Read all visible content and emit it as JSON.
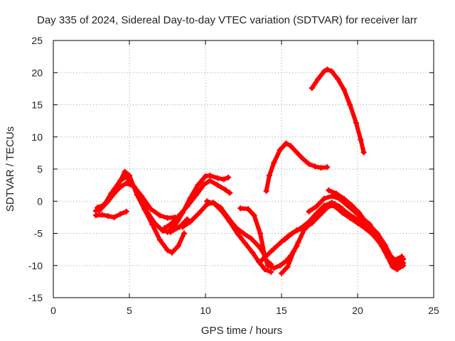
{
  "chart_data": {
    "type": "scatter",
    "title": "Day 335 of 2024, Sidereal Day-to-day VTEC variation (SDTVAR) for receiver larr",
    "xlabel": "GPS time / hours",
    "ylabel": "SDTVAR / TECUs",
    "xlim": [
      0,
      25
    ],
    "ylim": [
      -15,
      25
    ],
    "xticks": [
      "0",
      "5",
      "10",
      "15",
      "20",
      "25"
    ],
    "yticks": [
      "-15",
      "-10",
      "-5",
      "0",
      "5",
      "10",
      "15",
      "20",
      "25"
    ],
    "grid": true,
    "marker": "plus",
    "color": "#ff0000",
    "series": [
      {
        "points": [
          [
            2.9,
            -1.0
          ],
          [
            3.3,
            -0.6
          ],
          [
            3.7,
            0.6
          ],
          [
            4.2,
            2.2
          ],
          [
            4.7,
            4.6
          ],
          [
            5.0,
            4.0
          ],
          [
            5.5,
            1.0
          ],
          [
            6.0,
            -1.3
          ],
          [
            6.5,
            -3.6
          ],
          [
            7.0,
            -6.0
          ],
          [
            7.5,
            -7.6
          ],
          [
            7.8,
            -8.0
          ],
          [
            8.2,
            -7.0
          ],
          [
            8.6,
            -5.0
          ]
        ]
      },
      {
        "points": [
          [
            3.0,
            -1.5
          ],
          [
            3.4,
            -0.4
          ],
          [
            3.8,
            1.2
          ],
          [
            4.4,
            3.2
          ],
          [
            4.8,
            3.8
          ],
          [
            5.2,
            2.6
          ],
          [
            5.7,
            0.3
          ],
          [
            6.2,
            -1.8
          ],
          [
            6.7,
            -3.5
          ],
          [
            7.2,
            -4.6
          ],
          [
            7.7,
            -4.8
          ],
          [
            8.3,
            -4.0
          ],
          [
            8.8,
            -2.8
          ]
        ]
      },
      {
        "points": [
          [
            2.8,
            -2.2
          ],
          [
            3.2,
            -2.1
          ],
          [
            3.6,
            -2.3
          ],
          [
            4.0,
            -2.5
          ],
          [
            4.4,
            -2.0
          ],
          [
            4.8,
            -1.6
          ]
        ]
      },
      {
        "points": [
          [
            2.8,
            -1.5
          ],
          [
            3.2,
            -1.0
          ],
          [
            3.6,
            0.0
          ],
          [
            4.0,
            1.2
          ],
          [
            4.4,
            2.2
          ],
          [
            4.8,
            2.8
          ],
          [
            5.3,
            2.3
          ],
          [
            5.8,
            0.8
          ],
          [
            6.4,
            -1.2
          ],
          [
            7.0,
            -2.2
          ],
          [
            7.5,
            -2.6
          ],
          [
            8.0,
            -2.5
          ]
        ]
      },
      {
        "points": [
          [
            7.5,
            -4.8
          ],
          [
            8.0,
            -3.8
          ],
          [
            8.5,
            -1.8
          ],
          [
            9.0,
            0.5
          ],
          [
            9.5,
            2.5
          ],
          [
            10.0,
            3.9
          ],
          [
            10.3,
            4.0
          ],
          [
            10.8,
            3.6
          ],
          [
            11.2,
            3.4
          ],
          [
            11.5,
            3.7
          ]
        ]
      },
      {
        "points": [
          [
            7.3,
            -4.2
          ],
          [
            7.7,
            -3.6
          ],
          [
            8.2,
            -2.4
          ],
          [
            8.8,
            -0.8
          ],
          [
            9.4,
            1.0
          ],
          [
            9.9,
            2.6
          ],
          [
            10.3,
            3.2
          ],
          [
            10.8,
            2.5
          ],
          [
            11.3,
            1.8
          ],
          [
            11.6,
            1.3
          ]
        ]
      },
      {
        "points": [
          [
            8.5,
            -4.0
          ],
          [
            9.0,
            -3.2
          ],
          [
            9.6,
            -1.8
          ],
          [
            10.1,
            -0.5
          ],
          [
            10.5,
            -0.2
          ],
          [
            11.0,
            -1.0
          ],
          [
            11.5,
            -2.6
          ],
          [
            12.0,
            -4.1
          ],
          [
            12.5,
            -5.0
          ],
          [
            13.0,
            -5.8
          ],
          [
            13.5,
            -7.0
          ],
          [
            13.8,
            -8.0
          ],
          [
            14.0,
            -9.2
          ],
          [
            14.3,
            -9.8
          ]
        ]
      },
      {
        "points": [
          [
            10.1,
            0.0
          ],
          [
            10.6,
            -0.4
          ],
          [
            11.1,
            -1.6
          ],
          [
            11.6,
            -3.2
          ],
          [
            12.1,
            -5.0
          ],
          [
            12.6,
            -6.5
          ],
          [
            13.1,
            -8.0
          ],
          [
            13.5,
            -9.4
          ],
          [
            13.9,
            -10.6
          ],
          [
            14.3,
            -11.0
          ]
        ]
      },
      {
        "points": [
          [
            12.3,
            -1.1
          ],
          [
            12.8,
            -1.2
          ],
          [
            13.2,
            -2.2
          ],
          [
            13.6,
            -5.0
          ],
          [
            13.9,
            -8.6
          ],
          [
            14.1,
            -10.0
          ],
          [
            14.5,
            -10.4
          ],
          [
            14.9,
            -10.0
          ],
          [
            15.3,
            -9.3
          ],
          [
            15.6,
            -8.5
          ],
          [
            16.0,
            -7.0
          ]
        ]
      },
      {
        "points": [
          [
            13.6,
            -9.4
          ],
          [
            14.0,
            -8.5
          ],
          [
            14.5,
            -7.4
          ],
          [
            15.0,
            -6.3
          ],
          [
            15.5,
            -5.3
          ],
          [
            16.0,
            -4.5
          ],
          [
            16.5,
            -4.2
          ],
          [
            17.0,
            -3.4
          ],
          [
            17.5,
            -2.2
          ],
          [
            18.0,
            -1.0
          ],
          [
            18.5,
            -0.4
          ],
          [
            19.0,
            -1.2
          ],
          [
            19.5,
            -2.4
          ],
          [
            20.0,
            -3.2
          ],
          [
            20.5,
            -3.6
          ]
        ]
      },
      {
        "points": [
          [
            15.0,
            -11.2
          ],
          [
            15.4,
            -10.2
          ],
          [
            15.8,
            -7.8
          ],
          [
            16.1,
            -6.4
          ],
          [
            16.5,
            -4.4
          ],
          [
            17.0,
            -3.2
          ],
          [
            17.5,
            -2.0
          ],
          [
            18.0,
            -0.6
          ],
          [
            18.5,
            -0.8
          ],
          [
            19.0,
            -1.8
          ],
          [
            19.5,
            -2.6
          ],
          [
            20.0,
            -3.4
          ],
          [
            20.5,
            -4.2
          ],
          [
            21.0,
            -5.2
          ],
          [
            21.5,
            -6.6
          ],
          [
            22.0,
            -8.8
          ],
          [
            22.3,
            -10.2
          ],
          [
            22.6,
            -10.6
          ],
          [
            23.0,
            -10.0
          ]
        ]
      },
      {
        "points": [
          [
            15.2,
            -6.0
          ],
          [
            15.7,
            -5.0
          ],
          [
            16.2,
            -4.3
          ],
          [
            16.8,
            -3.2
          ],
          [
            17.3,
            -1.9
          ],
          [
            17.8,
            -0.7
          ],
          [
            18.3,
            -0.2
          ],
          [
            18.8,
            -0.8
          ],
          [
            19.3,
            -1.8
          ],
          [
            19.8,
            -2.6
          ],
          [
            20.3,
            -3.0
          ],
          [
            20.8,
            -3.8
          ],
          [
            21.3,
            -5.0
          ],
          [
            21.8,
            -6.8
          ],
          [
            22.2,
            -8.6
          ],
          [
            22.6,
            -9.4
          ],
          [
            23.0,
            -9.0
          ]
        ]
      },
      {
        "points": [
          [
            16.8,
            -1.6
          ],
          [
            17.3,
            -0.8
          ],
          [
            17.8,
            0.4
          ],
          [
            18.3,
            0.8
          ],
          [
            18.8,
            0.4
          ],
          [
            19.3,
            -0.6
          ],
          [
            19.8,
            -1.6
          ],
          [
            20.3,
            -2.6
          ],
          [
            20.8,
            -3.6
          ],
          [
            21.3,
            -5.4
          ],
          [
            21.8,
            -7.8
          ],
          [
            22.2,
            -9.6
          ],
          [
            22.6,
            -10.0
          ],
          [
            23.0,
            -9.6
          ]
        ]
      },
      {
        "points": [
          [
            18.1,
            1.7
          ],
          [
            18.6,
            1.2
          ],
          [
            19.1,
            0.4
          ],
          [
            19.6,
            -0.6
          ],
          [
            20.1,
            -1.8
          ],
          [
            20.6,
            -3.4
          ],
          [
            21.1,
            -5.2
          ],
          [
            21.6,
            -7.0
          ],
          [
            22.0,
            -8.6
          ],
          [
            22.4,
            -9.2
          ],
          [
            22.9,
            -8.6
          ]
        ]
      },
      {
        "points": [
          [
            14.0,
            1.6
          ],
          [
            14.2,
            4.0
          ],
          [
            14.5,
            6.0
          ],
          [
            14.9,
            8.0
          ],
          [
            15.3,
            9.0
          ],
          [
            15.6,
            8.6
          ],
          [
            16.0,
            7.6
          ],
          [
            16.4,
            6.6
          ],
          [
            16.8,
            5.8
          ],
          [
            17.2,
            5.4
          ],
          [
            17.6,
            5.2
          ],
          [
            18.0,
            5.3
          ]
        ]
      },
      {
        "points": [
          [
            17.0,
            17.6
          ],
          [
            17.4,
            19.0
          ],
          [
            17.8,
            20.2
          ],
          [
            18.0,
            20.5
          ],
          [
            18.3,
            20.2
          ],
          [
            18.7,
            19.0
          ],
          [
            19.1,
            17.4
          ],
          [
            19.5,
            15.0
          ],
          [
            19.9,
            12.2
          ],
          [
            20.2,
            9.6
          ],
          [
            20.4,
            7.6
          ]
        ]
      }
    ]
  }
}
